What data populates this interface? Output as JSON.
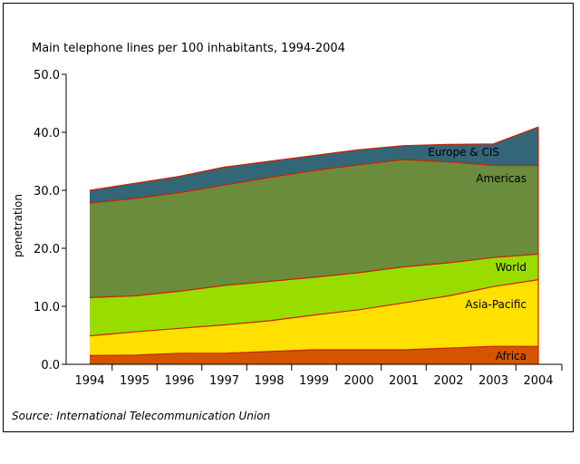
{
  "chart_data": {
    "type": "area",
    "stacked": true,
    "title": "Main telephone lines per 100 inhabitants, 1994-2004",
    "ylabel": "penetration",
    "xlabel": "",
    "source": "Source: International Telecommunication Union",
    "x": [
      "1994",
      "1995",
      "1996",
      "1997",
      "1998",
      "1999",
      "2000",
      "2001",
      "2002",
      "2003",
      "2004"
    ],
    "yticks": [
      "0.0",
      "10.0",
      "20.0",
      "30.0",
      "40.0",
      "50.0"
    ],
    "ylim": [
      0,
      50
    ],
    "series": [
      {
        "name": "Africa",
        "color": "#d45500",
        "values": [
          1.5,
          1.6,
          1.9,
          1.9,
          2.2,
          2.5,
          2.5,
          2.5,
          2.8,
          3.1,
          3.1
        ]
      },
      {
        "name": "Asia-Pacific",
        "color": "#ffe000",
        "values": [
          4.9,
          5.6,
          6.2,
          6.8,
          7.5,
          8.5,
          9.4,
          10.6,
          11.8,
          13.4,
          14.6
        ]
      },
      {
        "name": "World",
        "color": "#99dd00",
        "values": [
          11.5,
          11.8,
          12.6,
          13.6,
          14.3,
          15.0,
          15.8,
          16.8,
          17.5,
          18.4,
          19.0
        ]
      },
      {
        "name": "Americas",
        "color": "#6a8c3c",
        "values": [
          27.8,
          28.6,
          29.6,
          30.9,
          32.2,
          33.4,
          34.4,
          35.3,
          34.9,
          34.3,
          34.3
        ]
      },
      {
        "name": "Europe & CIS",
        "color": "#336677",
        "values": [
          30.0,
          31.2,
          32.4,
          34.0,
          35.0,
          36.0,
          37.0,
          37.7,
          37.9,
          38.0,
          40.9
        ]
      }
    ]
  }
}
